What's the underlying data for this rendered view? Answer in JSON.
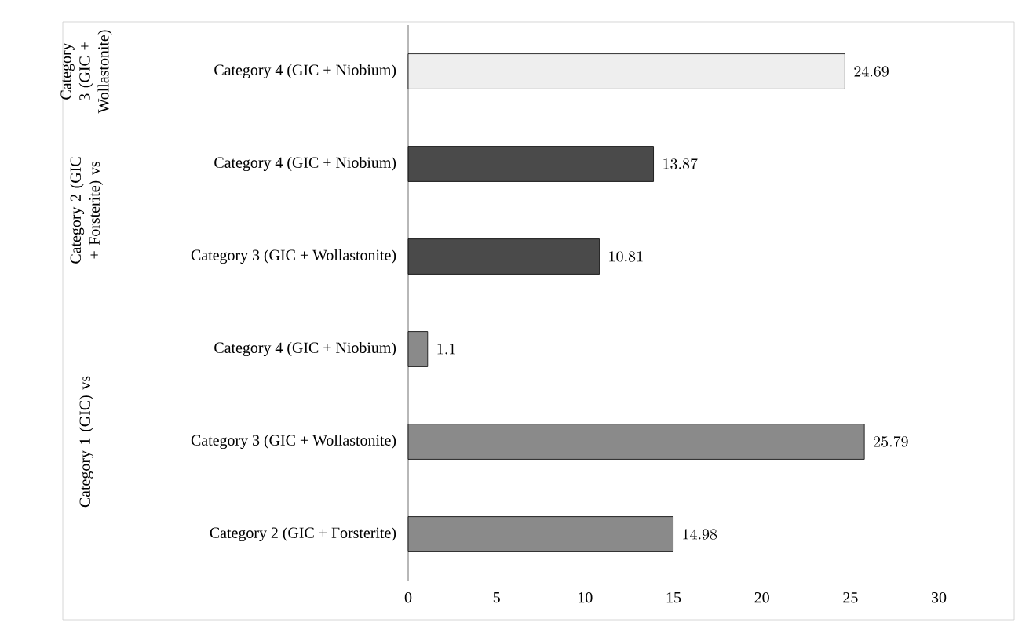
{
  "chart_data": {
    "type": "bar",
    "orientation": "horizontal",
    "categories": [
      "Category 4 (GIC + Niobium)",
      "Category 4 (GIC + Niobium)",
      "Category 3 (GIC + Wollastonite)",
      "Category 4 (GIC + Niobium)",
      "Category 3 (GIC + Wollastonite)",
      "Category 2 (GIC + Forsterite)"
    ],
    "values": [
      24.69,
      13.87,
      10.81,
      1.1,
      25.79,
      14.98
    ],
    "colors": [
      "#eeeeee",
      "#4a4a4a",
      "#4a4a4a",
      "#8a8a8a",
      "#8a8a8a",
      "#8a8a8a"
    ],
    "xlim": [
      0,
      30
    ],
    "xticks": [
      0,
      5,
      10,
      15,
      20,
      25,
      30
    ],
    "data_labels": true,
    "grid": false,
    "annotations": [
      "Category 3 (GIC + Wollastonite)",
      "Category 2 (GIC + Forsterite) vs",
      "Category 1 (GIC) vs"
    ]
  }
}
